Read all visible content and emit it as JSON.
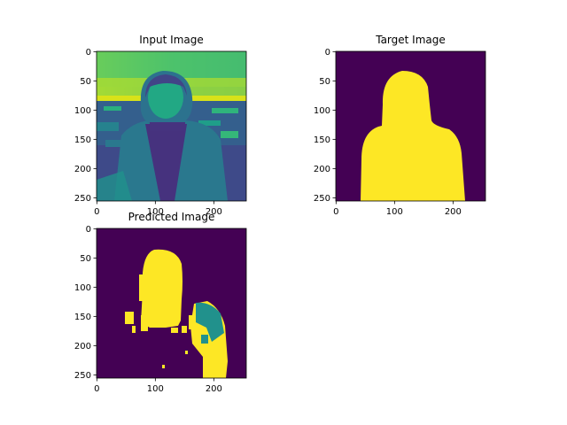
{
  "chart_data": [
    {
      "type": "image",
      "title": "Input Image",
      "image_size": [
        256,
        256
      ],
      "xticks": [
        0,
        100,
        200
      ],
      "yticks": [
        0,
        50,
        100,
        150,
        200,
        250
      ],
      "colormap": "viridis",
      "content": "grayscale photo of a person rendered with viridis colormap"
    },
    {
      "type": "image",
      "title": "Target Image",
      "image_size": [
        256,
        256
      ],
      "xticks": [
        0,
        100,
        200
      ],
      "yticks": [
        0,
        50,
        100,
        150,
        200,
        250
      ],
      "colormap": "viridis",
      "content": "binary segmentation mask of the person"
    },
    {
      "type": "image",
      "title": "Predicted Image",
      "image_size": [
        256,
        256
      ],
      "xticks": [
        0,
        100,
        200
      ],
      "yticks": [
        0,
        50,
        100,
        150,
        200,
        250
      ],
      "colormap": "viridis",
      "content": "predicted segmentation mask with three classes"
    }
  ],
  "colors": {
    "viridis_dark": "#440154",
    "viridis_mid": "#21918c",
    "viridis_bright": "#fde725"
  }
}
